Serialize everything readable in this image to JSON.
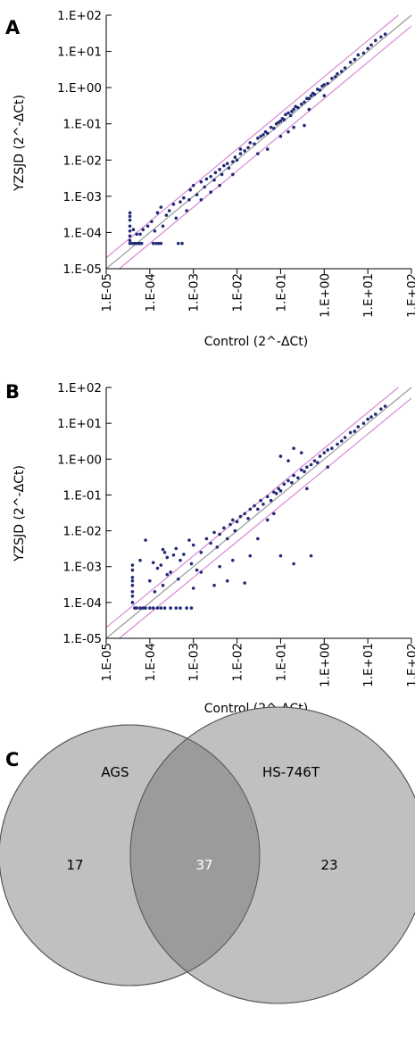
{
  "panels": [
    "A",
    "B",
    "C"
  ],
  "chart_data": [
    {
      "type": "scatter",
      "panel": "A",
      "xlabel": "Control (2^-ΔCt)",
      "ylabel": "YZSJD (2^-ΔCt)",
      "x_scale": "log10",
      "y_scale": "log10",
      "xlim": [
        1e-05,
        100
      ],
      "ylim": [
        1e-05,
        100
      ],
      "x_ticks": [
        "1.E-05",
        "1.E-04",
        "1.E-03",
        "1.E-02",
        "1.E-01",
        "1.E+00",
        "1.E+01",
        "1.E+02"
      ],
      "y_ticks": [
        "1.E-05",
        "1.E-04",
        "1.E-03",
        "1.E-02",
        "1.E-01",
        "1.E+00",
        "1.E+01",
        "1.E+02"
      ],
      "reference_lines": [
        {
          "label": "y = x",
          "factor": 1,
          "color": "#9a9a9a"
        },
        {
          "label": "2-fold up",
          "factor": 2,
          "color": "#d78ad3"
        },
        {
          "label": "2-fold down",
          "factor": 0.5,
          "color": "#d78ad3"
        }
      ],
      "marker_color": "#232a78",
      "points": [
        [
          3.5e-05,
          0.00035
        ],
        [
          3.5e-05,
          0.00028
        ],
        [
          3.5e-05,
          0.00022
        ],
        [
          3.5e-05,
          0.00015
        ],
        [
          3.5e-05,
          0.00011
        ],
        [
          3.5e-05,
          8e-05
        ],
        [
          3.5e-05,
          6e-05
        ],
        [
          3.5e-05,
          5e-05
        ],
        [
          4e-05,
          5e-05
        ],
        [
          4.5e-05,
          5e-05
        ],
        [
          5e-05,
          5e-05
        ],
        [
          5.5e-05,
          5e-05
        ],
        [
          6e-05,
          5e-05
        ],
        [
          6.5e-05,
          5e-05
        ],
        [
          0.00012,
          5e-05
        ],
        [
          0.00014,
          5e-05
        ],
        [
          0.00016,
          5e-05
        ],
        [
          0.00018,
          5e-05
        ],
        [
          0.00045,
          5e-05
        ],
        [
          0.00055,
          5e-05
        ],
        [
          4.2e-05,
          0.00012
        ],
        [
          5e-05,
          9e-05
        ],
        [
          6e-05,
          9e-05
        ],
        [
          7e-05,
          0.00012
        ],
        [
          9e-05,
          0.00015
        ],
        [
          0.00011,
          0.0002
        ],
        [
          0.00013,
          0.00011
        ],
        [
          0.00015,
          0.00035
        ],
        [
          0.00018,
          0.0005
        ],
        [
          0.0002,
          0.00015
        ],
        [
          0.00024,
          0.0003
        ],
        [
          0.00028,
          0.0004
        ],
        [
          0.00035,
          0.0006
        ],
        [
          0.0004,
          0.00025
        ],
        [
          0.0005,
          0.0007
        ],
        [
          0.0006,
          0.0009
        ],
        [
          0.0008,
          0.0008
        ],
        [
          0.00085,
          0.0015
        ],
        [
          0.001,
          0.002
        ],
        [
          0.0012,
          0.0011
        ],
        [
          0.0015,
          0.0025
        ],
        [
          0.0018,
          0.0018
        ],
        [
          0.002,
          0.003
        ],
        [
          0.0025,
          0.0035
        ],
        [
          0.003,
          0.0028
        ],
        [
          0.0032,
          0.0045
        ],
        [
          0.004,
          0.0055
        ],
        [
          0.0045,
          0.004
        ],
        [
          0.005,
          0.007
        ],
        [
          0.006,
          0.008
        ],
        [
          0.0065,
          0.006
        ],
        [
          0.008,
          0.009
        ],
        [
          0.009,
          0.012
        ],
        [
          0.01,
          0.01
        ],
        [
          0.012,
          0.015
        ],
        [
          0.015,
          0.018
        ],
        [
          0.018,
          0.022
        ],
        [
          0.02,
          0.03
        ],
        [
          0.025,
          0.028
        ],
        [
          0.03,
          0.04
        ],
        [
          0.035,
          0.045
        ],
        [
          0.04,
          0.05
        ],
        [
          0.045,
          0.06
        ],
        [
          0.05,
          0.055
        ],
        [
          0.06,
          0.08
        ],
        [
          0.07,
          0.075
        ],
        [
          0.08,
          0.1
        ],
        [
          0.09,
          0.11
        ],
        [
          0.1,
          0.12
        ],
        [
          0.11,
          0.14
        ],
        [
          0.12,
          0.13
        ],
        [
          0.13,
          0.18
        ],
        [
          0.15,
          0.2
        ],
        [
          0.17,
          0.17
        ],
        [
          0.18,
          0.22
        ],
        [
          0.2,
          0.25
        ],
        [
          0.22,
          0.3
        ],
        [
          0.25,
          0.28
        ],
        [
          0.3,
          0.35
        ],
        [
          0.35,
          0.4
        ],
        [
          0.4,
          0.5
        ],
        [
          0.45,
          0.5
        ],
        [
          0.5,
          0.6
        ],
        [
          0.55,
          0.7
        ],
        [
          0.6,
          0.65
        ],
        [
          0.7,
          0.9
        ],
        [
          0.8,
          0.85
        ],
        [
          0.9,
          1.1
        ],
        [
          1,
          1.2
        ],
        [
          1.2,
          1.3
        ],
        [
          1.5,
          1.8
        ],
        [
          1.8,
          2
        ],
        [
          2,
          2.4
        ],
        [
          2.5,
          2.8
        ],
        [
          3,
          3.5
        ],
        [
          4,
          5
        ],
        [
          5,
          6
        ],
        [
          8,
          9
        ],
        [
          12,
          15
        ],
        [
          15,
          20
        ],
        [
          6,
          8
        ],
        [
          10,
          12
        ],
        [
          20,
          25
        ],
        [
          25,
          30
        ],
        [
          0.004,
          0.002
        ],
        [
          0.03,
          0.015
        ],
        [
          0.2,
          0.08
        ],
        [
          0.15,
          0.06
        ],
        [
          0.35,
          0.09
        ],
        [
          0.05,
          0.02
        ],
        [
          0.008,
          0.004
        ],
        [
          0.1,
          0.045
        ],
        [
          0.0025,
          0.0013
        ],
        [
          1,
          0.6
        ],
        [
          0.45,
          0.25
        ],
        [
          0.012,
          0.02
        ],
        [
          0.0015,
          0.0008
        ],
        [
          0.0007,
          0.0004
        ]
      ]
    },
    {
      "type": "scatter",
      "panel": "B",
      "xlabel": "Control (2^-ΔCt)",
      "ylabel": "YZSJD (2^-ΔCt)",
      "x_scale": "log10",
      "y_scale": "log10",
      "xlim": [
        1e-05,
        100
      ],
      "ylim": [
        1e-05,
        100
      ],
      "x_ticks": [
        "1.E-05",
        "1.E-04",
        "1.E-03",
        "1.E-02",
        "1.E-01",
        "1.E+00",
        "1.E+01",
        "1.E+02"
      ],
      "y_ticks": [
        "1.E-05",
        "1.E-04",
        "1.E-03",
        "1.E-02",
        "1.E-01",
        "1.E+00",
        "1.E+01",
        "1.E+02"
      ],
      "reference_lines": [
        {
          "label": "y = x",
          "factor": 1,
          "color": "#9a9a9a"
        },
        {
          "label": "2-fold up",
          "factor": 2,
          "color": "#d78ad3"
        },
        {
          "label": "2-fold down",
          "factor": 0.5,
          "color": "#d78ad3"
        }
      ],
      "marker_color": "#232a78",
      "points": [
        [
          4e-05,
          0.0011
        ],
        [
          4e-05,
          0.0008
        ],
        [
          4e-05,
          0.0005
        ],
        [
          4e-05,
          0.0004
        ],
        [
          4e-05,
          0.0003
        ],
        [
          4e-05,
          0.0002
        ],
        [
          4e-05,
          0.00015
        ],
        [
          4e-05,
          0.0001
        ],
        [
          4.5e-05,
          7e-05
        ],
        [
          5e-05,
          7e-05
        ],
        [
          6e-05,
          7e-05
        ],
        [
          7e-05,
          7e-05
        ],
        [
          8e-05,
          7e-05
        ],
        [
          0.0001,
          7e-05
        ],
        [
          0.00012,
          7e-05
        ],
        [
          0.00015,
          7e-05
        ],
        [
          0.00018,
          7e-05
        ],
        [
          0.00022,
          7e-05
        ],
        [
          0.0003,
          7e-05
        ],
        [
          0.0004,
          7e-05
        ],
        [
          0.0005,
          7e-05
        ],
        [
          0.0007,
          7e-05
        ],
        [
          0.0009,
          7e-05
        ],
        [
          6e-05,
          0.0015
        ],
        [
          8e-05,
          0.0055
        ],
        [
          0.0001,
          0.0004
        ],
        [
          0.00012,
          0.0013
        ],
        [
          0.00013,
          0.0002
        ],
        [
          0.00015,
          0.0009
        ],
        [
          0.00018,
          0.0011
        ],
        [
          0.0002,
          0.0003
        ],
        [
          0.00022,
          0.0025
        ],
        [
          0.00025,
          0.0018
        ],
        [
          0.0003,
          0.0007
        ],
        [
          0.00035,
          0.0021
        ],
        [
          0.0004,
          0.0032
        ],
        [
          0.00045,
          0.00045
        ],
        [
          0.0005,
          0.0015
        ],
        [
          0.0006,
          0.0022
        ],
        [
          0.0008,
          0.0055
        ],
        [
          0.0009,
          0.0012
        ],
        [
          0.001,
          0.004
        ],
        [
          0.0012,
          0.0008
        ],
        [
          0.0015,
          0.0025
        ],
        [
          0.002,
          0.006
        ],
        [
          0.0025,
          0.0045
        ],
        [
          0.003,
          0.009
        ],
        [
          0.0035,
          0.0035
        ],
        [
          0.004,
          0.008
        ],
        [
          0.005,
          0.012
        ],
        [
          0.006,
          0.006
        ],
        [
          0.007,
          0.015
        ],
        [
          0.008,
          0.02
        ],
        [
          0.009,
          0.01
        ],
        [
          0.01,
          0.018
        ],
        [
          0.012,
          0.025
        ],
        [
          0.015,
          0.03
        ],
        [
          0.018,
          0.022
        ],
        [
          0.02,
          0.04
        ],
        [
          0.025,
          0.05
        ],
        [
          0.03,
          0.04
        ],
        [
          0.035,
          0.07
        ],
        [
          0.04,
          0.055
        ],
        [
          0.05,
          0.09
        ],
        [
          0.06,
          0.07
        ],
        [
          0.07,
          0.12
        ],
        [
          0.08,
          0.11
        ],
        [
          0.09,
          0.15
        ],
        [
          0.1,
          0.13
        ],
        [
          0.12,
          0.2
        ],
        [
          0.15,
          0.25
        ],
        [
          0.18,
          0.22
        ],
        [
          0.2,
          0.35
        ],
        [
          0.25,
          0.3
        ],
        [
          0.3,
          0.5
        ],
        [
          0.35,
          0.45
        ],
        [
          0.4,
          0.6
        ],
        [
          0.5,
          0.7
        ],
        [
          0.6,
          0.9
        ],
        [
          0.7,
          0.8
        ],
        [
          0.8,
          1.2
        ],
        [
          1,
          1.5
        ],
        [
          1.2,
          1.8
        ],
        [
          1.5,
          2
        ],
        [
          2,
          2.6
        ],
        [
          2.5,
          3.2
        ],
        [
          3,
          4
        ],
        [
          4,
          5.5
        ],
        [
          5,
          6
        ],
        [
          6,
          8
        ],
        [
          8,
          10
        ],
        [
          10,
          13
        ],
        [
          12,
          15
        ],
        [
          15,
          18
        ],
        [
          20,
          25
        ],
        [
          25,
          30
        ],
        [
          0.1,
          1.2
        ],
        [
          0.15,
          0.9
        ],
        [
          0.3,
          1.5
        ],
        [
          0.2,
          2
        ],
        [
          0.001,
          0.00025
        ],
        [
          0.003,
          0.0003
        ],
        [
          0.006,
          0.0004
        ],
        [
          0.015,
          0.00035
        ],
        [
          0.1,
          0.002
        ],
        [
          0.2,
          0.0012
        ],
        [
          0.5,
          0.002
        ],
        [
          0.02,
          0.002
        ],
        [
          0.008,
          0.0015
        ],
        [
          0.004,
          0.001
        ],
        [
          0.03,
          0.006
        ],
        [
          0.05,
          0.02
        ],
        [
          0.4,
          0.15
        ],
        [
          0.07,
          0.03
        ],
        [
          0.0002,
          0.003
        ],
        [
          0.00025,
          0.0006
        ],
        [
          1.2,
          0.6
        ],
        [
          0.0015,
          0.0007
        ]
      ]
    }
  ],
  "venn": {
    "panel": "C",
    "set_left_label": "AGS",
    "set_right_label": "HS-746T",
    "left_only": "17",
    "intersection": "37",
    "right_only": "23",
    "colors": {
      "circle": "#c0c0c0",
      "overlap": "#9b9b9b",
      "stroke": "#555555",
      "intersection_text": "#ffffff"
    }
  }
}
